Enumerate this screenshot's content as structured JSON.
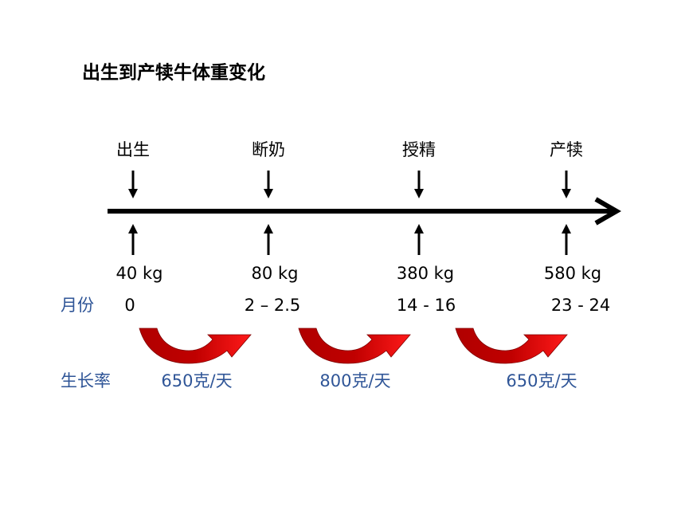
{
  "header": {
    "title": "出生到产犊牛体重变化"
  },
  "stages": [
    {
      "label": "出生",
      "weight": "40 kg",
      "month": "0"
    },
    {
      "label": "断奶",
      "weight": "80 kg",
      "month": "2 – 2.5"
    },
    {
      "label": "授精",
      "weight": "380 kg",
      "month": "14 - 16"
    },
    {
      "label": "产犊",
      "weight": "580 kg",
      "month": "23 - 24"
    }
  ],
  "row_labels": {
    "month": "月份",
    "rate": "生长率"
  },
  "rates": [
    "650克/天",
    "800克/天",
    "650克/天"
  ]
}
